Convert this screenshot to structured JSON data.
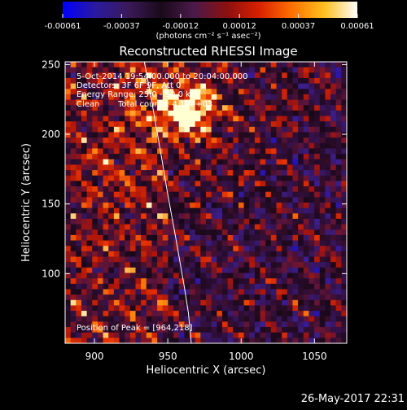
{
  "chart_data": {
    "type": "heatmap",
    "title": "Reconstructed RHESSI Image",
    "xlabel": "Heliocentric X (arcsec)",
    "ylabel": "Heliocentric Y (arcsec)",
    "xlim": [
      880,
      1072
    ],
    "ylim": [
      50,
      252
    ],
    "xticks": [
      900,
      950,
      1000,
      1050
    ],
    "yticks": [
      100,
      150,
      200,
      250
    ],
    "colorbar": {
      "ticks": [
        "-0.00061",
        "-0.00037",
        "-0.00012",
        "0.00012",
        "0.00037",
        "0.00061"
      ],
      "range": [
        -0.00061,
        0.00061
      ],
      "unit_label": "(photons cm⁻² s⁻¹ asec⁻²)",
      "colormap": [
        "#0000ff",
        "#2a1aa0",
        "#3b1a5a",
        "#1a0a1a",
        "#4a1a4a",
        "#8a1010",
        "#d82000",
        "#ff7000",
        "#ffc020",
        "#ffffff"
      ]
    },
    "annotations": {
      "time": "5-Oct-2014 19:54:00.000 to 20:04:00.000",
      "detectors": "Detectors: 3F 6F 9F, Att 0",
      "energy": "Energy Range: 25.0 - 50.0 keV",
      "clean": "Clean",
      "total_counts": "Total counts: 4.12E+03",
      "peak": "Position of Peak = [964,218]"
    },
    "peak": [
      964,
      218
    ],
    "limb_points": [
      [
        934,
        252
      ],
      [
        937,
        235
      ],
      [
        940,
        218
      ],
      [
        943,
        200
      ],
      [
        946,
        182
      ],
      [
        949,
        163
      ],
      [
        952,
        145
      ],
      [
        955,
        128
      ],
      [
        958,
        110
      ],
      [
        961,
        92
      ],
      [
        964,
        72
      ],
      [
        966,
        50
      ]
    ]
  },
  "footer": {
    "timestamp": "26-May-2017 22:31"
  }
}
